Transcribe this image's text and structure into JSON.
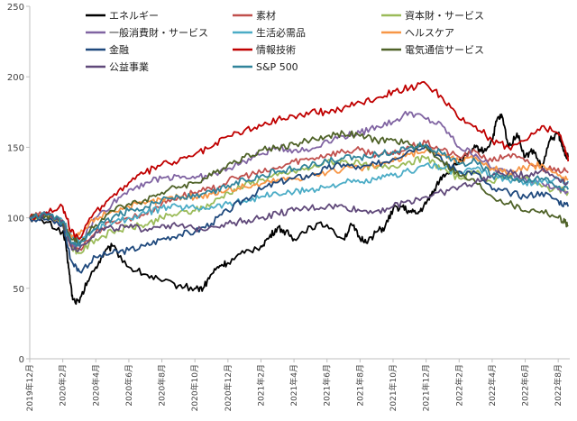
{
  "chart_data": {
    "type": "line",
    "ylim": [
      0,
      250
    ],
    "yticks": [
      0,
      50,
      100,
      150,
      200,
      250
    ],
    "grid": false,
    "legend_position": "top",
    "x_tick_labels": [
      "2019年12月",
      "2020年2月",
      "2020年4月",
      "2020年6月",
      "2020年8月",
      "2020年10月",
      "2020年12月",
      "2021年2月",
      "2021年4月",
      "2021年6月",
      "2021年8月",
      "2021年10月",
      "2021年12月",
      "2022年2月",
      "2022年4月",
      "2022年6月",
      "2022年8月"
    ],
    "x_tick_values": [
      0,
      2,
      4,
      6,
      8,
      10,
      12,
      14,
      16,
      18,
      20,
      22,
      24,
      26,
      28,
      30,
      32
    ],
    "x_range": [
      0,
      32.7
    ],
    "series": [
      {
        "name": "エネルギー",
        "color": "#000000",
        "x": [
          0,
          1,
          2,
          2.2,
          2.4,
          2.6,
          3,
          3.5,
          4,
          4.5,
          5,
          6,
          7,
          8,
          9,
          10,
          10.5,
          11,
          11.5,
          12,
          13,
          14,
          14.5,
          15,
          15.5,
          16,
          17,
          18,
          19,
          19.5,
          20,
          20.5,
          21,
          21.5,
          22,
          22.5,
          23,
          23.5,
          24,
          24.5,
          25,
          25.5,
          26,
          26.5,
          27,
          27.5,
          28,
          28.3,
          28.6,
          29,
          29.5,
          30,
          30.5,
          31,
          31.5,
          32,
          32.3,
          32.6
        ],
        "y": [
          100,
          97,
          90,
          80,
          60,
          42,
          40,
          55,
          65,
          75,
          80,
          65,
          60,
          55,
          52,
          50,
          50,
          60,
          66,
          68,
          75,
          80,
          86,
          93,
          90,
          85,
          94,
          95,
          85,
          95,
          85,
          84,
          90,
          93,
          106,
          108,
          104,
          103,
          110,
          120,
          130,
          134,
          140,
          144,
          150,
          147,
          155,
          170,
          172,
          150,
          160,
          143,
          148,
          135,
          155,
          160,
          148,
          143
        ]
      },
      {
        "name": "素材",
        "color": "#c0504d",
        "x": [
          0,
          1,
          2,
          2.5,
          3,
          4,
          5,
          6,
          7,
          8,
          9,
          10,
          11,
          12,
          13,
          14,
          15,
          16,
          17,
          18,
          19,
          20,
          21,
          22,
          23,
          24,
          25,
          26,
          27,
          28,
          29,
          30,
          31,
          32,
          32.6
        ],
        "y": [
          100,
          103,
          95,
          80,
          78,
          90,
          97,
          100,
          103,
          110,
          115,
          118,
          120,
          126,
          130,
          132,
          135,
          140,
          142,
          145,
          147,
          148,
          145,
          145,
          150,
          153,
          148,
          143,
          147,
          140,
          145,
          140,
          135,
          135,
          132
        ]
      },
      {
        "name": "資本財・サービス",
        "color": "#9bbb59",
        "x": [
          0,
          1,
          2,
          2.5,
          3,
          4,
          5,
          6,
          7,
          8,
          9,
          10,
          11,
          12,
          13,
          14,
          15,
          16,
          17,
          18,
          19,
          20,
          21,
          22,
          23,
          24,
          25,
          26,
          27,
          28,
          29,
          30,
          31,
          32,
          32.6
        ],
        "y": [
          100,
          102,
          96,
          80,
          75,
          85,
          90,
          93,
          95,
          100,
          103,
          105,
          110,
          118,
          123,
          127,
          130,
          133,
          135,
          140,
          140,
          138,
          135,
          137,
          140,
          142,
          135,
          128,
          132,
          125,
          130,
          128,
          122,
          120,
          118
        ]
      },
      {
        "name": "一般消費財・サービス",
        "color": "#8064a2",
        "x": [
          0,
          1,
          2,
          2.5,
          3,
          4,
          5,
          6,
          7,
          8,
          9,
          10,
          11,
          12,
          13,
          14,
          15,
          16,
          17,
          18,
          19,
          20,
          21,
          22,
          23,
          24,
          25,
          26,
          27,
          28,
          29,
          30,
          31,
          32,
          32.6
        ],
        "y": [
          100,
          102,
          95,
          80,
          82,
          100,
          110,
          120,
          125,
          128,
          130,
          128,
          130,
          135,
          140,
          145,
          150,
          148,
          148,
          155,
          158,
          160,
          165,
          168,
          175,
          170,
          165,
          150,
          145,
          135,
          132,
          128,
          125,
          120,
          118
        ]
      },
      {
        "name": "生活必需品",
        "color": "#4bacc6",
        "x": [
          0,
          1,
          2,
          2.5,
          3,
          4,
          5,
          6,
          7,
          8,
          9,
          10,
          11,
          12,
          13,
          14,
          15,
          16,
          17,
          18,
          19,
          20,
          21,
          22,
          23,
          24,
          25,
          26,
          27,
          28,
          29,
          30,
          31,
          32,
          32.6
        ],
        "y": [
          100,
          101,
          98,
          88,
          85,
          92,
          96,
          100,
          103,
          107,
          108,
          107,
          108,
          110,
          112,
          115,
          117,
          118,
          120,
          122,
          125,
          125,
          127,
          130,
          133,
          138,
          135,
          132,
          135,
          130,
          127,
          125,
          125,
          128,
          126
        ]
      },
      {
        "name": "ヘルスケア",
        "color": "#f79646",
        "x": [
          0,
          1,
          2,
          2.5,
          3,
          4,
          5,
          6,
          7,
          8,
          9,
          10,
          11,
          12,
          13,
          14,
          15,
          16,
          17,
          18,
          19,
          20,
          21,
          22,
          23,
          24,
          25,
          26,
          27,
          28,
          29,
          30,
          31,
          32,
          32.6
        ],
        "y": [
          100,
          101,
          98,
          85,
          88,
          100,
          105,
          108,
          110,
          113,
          115,
          115,
          117,
          120,
          122,
          124,
          127,
          128,
          130,
          132,
          135,
          135,
          137,
          140,
          145,
          148,
          145,
          140,
          143,
          135,
          132,
          135,
          138,
          130,
          127
        ]
      },
      {
        "name": "金融",
        "color": "#1f497d",
        "x": [
          0,
          1,
          2,
          2.5,
          3,
          4,
          5,
          6,
          7,
          8,
          9,
          10,
          11,
          12,
          13,
          14,
          15,
          16,
          17,
          18,
          19,
          20,
          21,
          22,
          23,
          24,
          25,
          26,
          27,
          28,
          29,
          30,
          31,
          32,
          32.6
        ],
        "y": [
          100,
          99,
          95,
          70,
          62,
          72,
          75,
          77,
          80,
          85,
          88,
          90,
          96,
          105,
          113,
          120,
          125,
          128,
          130,
          135,
          138,
          135,
          138,
          142,
          148,
          152,
          140,
          133,
          132,
          120,
          118,
          115,
          118,
          112,
          108
        ]
      },
      {
        "name": "情報技術",
        "color": "#c00000",
        "x": [
          0,
          1,
          2,
          2.5,
          3,
          4,
          5,
          6,
          7,
          8,
          9,
          10,
          11,
          12,
          13,
          14,
          15,
          16,
          17,
          18,
          19,
          20,
          21,
          22,
          23,
          24,
          25,
          26,
          27,
          28,
          29,
          30,
          31,
          32,
          32.4,
          32.6
        ],
        "y": [
          100,
          104,
          108,
          90,
          85,
          105,
          115,
          125,
          132,
          138,
          140,
          145,
          150,
          158,
          162,
          165,
          170,
          172,
          175,
          175,
          178,
          182,
          185,
          190,
          192,
          195,
          185,
          170,
          165,
          155,
          150,
          155,
          165,
          160,
          150,
          140
        ]
      },
      {
        "name": "電気通信サービス",
        "color": "#4f6228",
        "x": [
          0,
          1,
          2,
          2.5,
          3,
          4,
          5,
          6,
          7,
          8,
          9,
          10,
          11,
          12,
          13,
          14,
          15,
          16,
          17,
          18,
          19,
          20,
          21,
          22,
          23,
          24,
          25,
          26,
          27,
          28,
          29,
          30,
          31,
          32,
          32.4,
          32.6
        ],
        "y": [
          100,
          102,
          96,
          85,
          82,
          95,
          105,
          110,
          113,
          118,
          122,
          125,
          130,
          138,
          143,
          148,
          150,
          152,
          155,
          158,
          160,
          158,
          155,
          155,
          152,
          150,
          140,
          130,
          125,
          115,
          110,
          105,
          105,
          100,
          97,
          94
        ]
      },
      {
        "name": "公益事業",
        "color": "#60497a",
        "x": [
          0,
          1,
          2,
          2.5,
          3,
          4,
          5,
          6,
          7,
          8,
          9,
          10,
          11,
          12,
          13,
          14,
          15,
          16,
          17,
          18,
          19,
          20,
          21,
          22,
          23,
          24,
          25,
          26,
          27,
          28,
          29,
          30,
          31,
          32,
          32.6
        ],
        "y": [
          100,
          102,
          98,
          80,
          78,
          90,
          93,
          93,
          92,
          95,
          94,
          92,
          94,
          96,
          98,
          100,
          103,
          105,
          107,
          108,
          108,
          105,
          105,
          108,
          112,
          115,
          118,
          122,
          125,
          130,
          132,
          130,
          134,
          128,
          125
        ]
      },
      {
        "name": "S&P 500",
        "color": "#31849b",
        "x": [
          0,
          1,
          2,
          2.5,
          3,
          4,
          5,
          6,
          7,
          8,
          9,
          10,
          11,
          12,
          13,
          14,
          15,
          16,
          17,
          18,
          19,
          20,
          21,
          22,
          23,
          24,
          25,
          26,
          27,
          28,
          29,
          30,
          31,
          32,
          32.6
        ],
        "y": [
          100,
          102,
          97,
          82,
          80,
          92,
          100,
          105,
          108,
          113,
          115,
          115,
          118,
          123,
          127,
          130,
          133,
          135,
          137,
          140,
          142,
          143,
          145,
          147,
          150,
          152,
          145,
          138,
          140,
          130,
          128,
          125,
          128,
          122,
          120
        ]
      }
    ]
  }
}
